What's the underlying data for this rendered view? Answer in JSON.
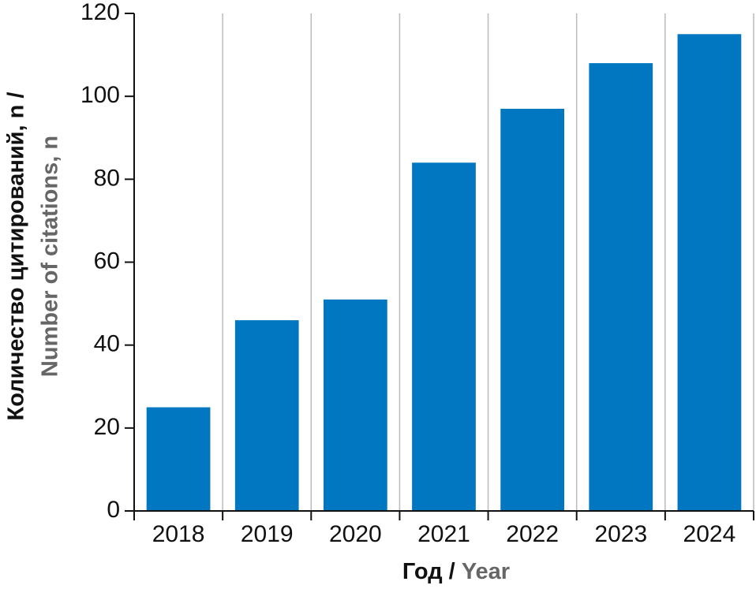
{
  "chart_data": {
    "type": "bar",
    "ylabel_ru": "Количество цитирований, n /",
    "ylabel_en": "Number of citations, n",
    "xlabel_ru": "Год /",
    "xlabel_en": "Year",
    "categories": [
      "2018",
      "2019",
      "2020",
      "2021",
      "2022",
      "2023",
      "2024"
    ],
    "values": [
      25,
      46,
      51,
      84,
      97,
      108,
      115
    ],
    "color": "#0077c0",
    "ylim": [
      0,
      120
    ],
    "yticks": [
      0,
      20,
      40,
      60,
      80,
      100,
      120
    ],
    "grid": true
  }
}
